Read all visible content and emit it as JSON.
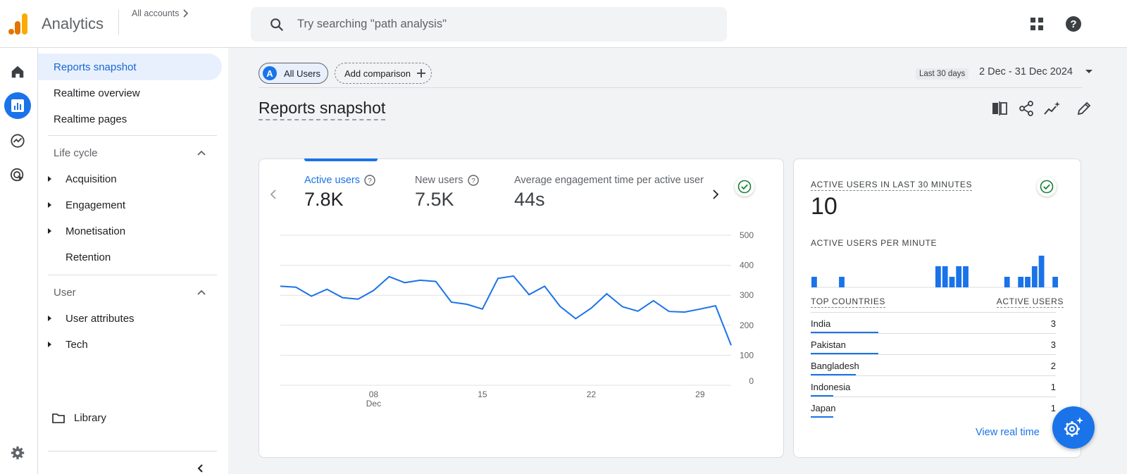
{
  "app": {
    "name": "Analytics",
    "accounts_label": "All accounts"
  },
  "search": {
    "placeholder": "Try searching \"path analysis\""
  },
  "nav": {
    "items": [
      {
        "label": "Reports snapshot"
      },
      {
        "label": "Realtime overview"
      },
      {
        "label": "Realtime pages"
      }
    ],
    "lifecycle": {
      "label": "Life cycle",
      "items": [
        {
          "label": "Acquisition"
        },
        {
          "label": "Engagement"
        },
        {
          "label": "Monetisation"
        },
        {
          "label": "Retention"
        }
      ]
    },
    "user": {
      "label": "User",
      "items": [
        {
          "label": "User attributes"
        },
        {
          "label": "Tech"
        }
      ]
    },
    "library": "Library"
  },
  "header": {
    "segment_badge": "A",
    "segment": "All Users",
    "add_comparison": "Add comparison",
    "date_label": "Last 30 days",
    "date_range": "2 Dec - 31 Dec 2024",
    "title": "Reports snapshot"
  },
  "metrics": [
    {
      "label": "Active users",
      "value": "7.8K"
    },
    {
      "label": "New users",
      "value": "7.5K"
    },
    {
      "label": "Average engagement time per active user",
      "value": "44s"
    }
  ],
  "chart_data": {
    "type": "line",
    "x": [
      "2 Dec",
      "3 Dec",
      "4 Dec",
      "5 Dec",
      "6 Dec",
      "7 Dec",
      "8 Dec",
      "9 Dec",
      "10 Dec",
      "11 Dec",
      "12 Dec",
      "13 Dec",
      "14 Dec",
      "15 Dec",
      "16 Dec",
      "17 Dec",
      "18 Dec",
      "19 Dec",
      "20 Dec",
      "21 Dec",
      "22 Dec",
      "23 Dec",
      "24 Dec",
      "25 Dec",
      "26 Dec",
      "27 Dec",
      "28 Dec",
      "29 Dec",
      "30 Dec",
      "31 Dec"
    ],
    "series": [
      {
        "values": [
          330,
          327,
          297,
          320,
          292,
          287,
          316,
          362,
          342,
          350,
          346,
          277,
          270,
          254,
          356,
          364,
          302,
          330,
          263,
          222,
          257,
          305,
          262,
          247,
          282,
          246,
          244,
          254,
          265,
          133
        ]
      }
    ],
    "tick_labels": [
      "08",
      "15",
      "22",
      "29"
    ],
    "tick_sublabel": "Dec",
    "ylim": [
      0,
      500
    ],
    "yticks": [
      0,
      100,
      200,
      300,
      400,
      500
    ],
    "y_axis_side": "right",
    "grid": true
  },
  "realtime": {
    "title": "ACTIVE USERS IN LAST 30 MINUTES",
    "value": "10",
    "per_minute_label": "ACTIVE USERS PER MINUTE",
    "per_minute": [
      1,
      0,
      0,
      0,
      1,
      0,
      0,
      0,
      0,
      0,
      0,
      0,
      0,
      0,
      0,
      0,
      0,
      0,
      2,
      2,
      1,
      2,
      2,
      0,
      0,
      0,
      0,
      0,
      1,
      0,
      1,
      1,
      2,
      3,
      0,
      1
    ],
    "col_country": "TOP COUNTRIES",
    "col_users": "ACTIVE USERS",
    "countries": [
      {
        "name": "India",
        "value": "3",
        "share": 1.0
      },
      {
        "name": "Pakistan",
        "value": "3",
        "share": 1.0
      },
      {
        "name": "Bangladesh",
        "value": "2",
        "share": 0.67
      },
      {
        "name": "Indonesia",
        "value": "1",
        "share": 0.33
      },
      {
        "name": "Japan",
        "value": "1",
        "share": 0.33
      }
    ],
    "view_link": "View real time"
  },
  "colors": {
    "accent": "#1a73e8",
    "logo_orange": "#f9ab00",
    "logo_dark": "#e37400"
  }
}
